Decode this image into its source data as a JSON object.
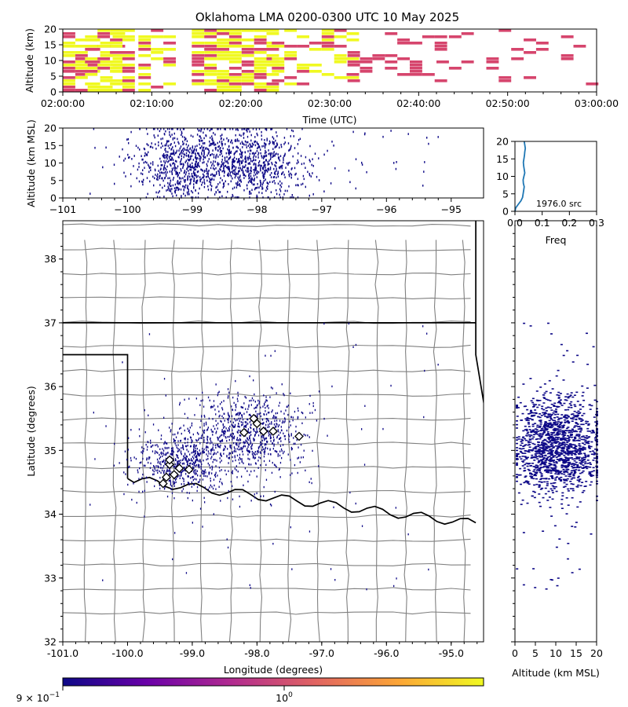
{
  "chart_data": [
    {
      "type": "heatmap",
      "panel": "time-altitude",
      "title": "Oklahoma LMA 0200-0300 UTC 10 May 2025",
      "xlabel": "Time (UTC)",
      "ylabel": "Altitude (km)",
      "x_ticks": [
        "02:00:00",
        "02:10:00",
        "02:20:00",
        "02:30:00",
        "02:40:00",
        "02:50:00",
        "03:00:00"
      ],
      "y_ticks": [
        "0",
        "5",
        "10",
        "15",
        "20"
      ],
      "xlim_minutes": [
        0,
        60
      ],
      "ylim": [
        0,
        20
      ],
      "clusters": [
        {
          "t": [
            0,
            6
          ],
          "alt": [
            0,
            20
          ],
          "fill": 0.55
        },
        {
          "t": [
            2.5,
            7.5
          ],
          "alt": [
            0,
            20
          ],
          "fill": 0.7
        },
        {
          "t": [
            8.5,
            12
          ],
          "alt": [
            0,
            20
          ],
          "fill": 0.45
        },
        {
          "t": [
            14.5,
            23.5
          ],
          "alt": [
            0,
            20
          ],
          "fill": 0.75
        },
        {
          "t": [
            23.5,
            32
          ],
          "alt": [
            2,
            20
          ],
          "fill": 0.3
        },
        {
          "t": [
            32,
            42
          ],
          "alt": [
            3,
            20
          ],
          "fill": 0.18
        },
        {
          "t": [
            42,
            60
          ],
          "alt": [
            2,
            20
          ],
          "fill": 0.09
        }
      ]
    },
    {
      "type": "scatter",
      "panel": "longitude-altitude",
      "xlabel": "",
      "ylabel": "Altitude (km MSL)",
      "x_ticks": [
        "−101",
        "−100",
        "−99",
        "−98",
        "−97",
        "−96",
        "−95"
      ],
      "y_ticks": [
        "0",
        "5",
        "10",
        "15",
        "20"
      ],
      "xlim": [
        -101,
        -94.5
      ],
      "ylim": [
        0,
        20
      ]
    },
    {
      "type": "line",
      "panel": "altitude-histogram",
      "xlabel": "Freq",
      "annotation": "1976.0 src",
      "x_ticks": [
        "0.0",
        "0.1",
        "0.2",
        "0.3"
      ],
      "y_ticks": [
        "0",
        "5",
        "10",
        "15",
        "20"
      ],
      "xlim": [
        0,
        0.3
      ],
      "ylim": [
        0,
        20
      ],
      "x": [
        0.0,
        0.003,
        0.012,
        0.022,
        0.028,
        0.03,
        0.032,
        0.034,
        0.031,
        0.03,
        0.033,
        0.036,
        0.034,
        0.032,
        0.031,
        0.033,
        0.035,
        0.036,
        0.038,
        0.036,
        0.034
      ],
      "y": [
        0.0,
        1,
        2,
        3,
        4,
        5,
        6,
        7,
        8,
        9,
        10,
        11,
        12,
        13,
        14,
        15,
        16,
        17,
        18,
        19,
        20
      ]
    },
    {
      "type": "scatter",
      "panel": "plan-view",
      "xlabel": "Longitude (degrees)",
      "ylabel": "Latitude (degrees)",
      "x_ticks": [
        "-101.0",
        "-100.0",
        "-99.0",
        "-98.0",
        "-97.0",
        "-96.0",
        "-95.0"
      ],
      "y_ticks": [
        "32",
        "33",
        "34",
        "35",
        "36",
        "37",
        "38"
      ],
      "xlim": [
        -101,
        -94.5
      ],
      "ylim": [
        32,
        38.6
      ],
      "clusters": [
        {
          "lon": -99.2,
          "lat": 34.8,
          "slon": 0.32,
          "slat": 0.22,
          "n": 500
        },
        {
          "lon": -98.1,
          "lat": 35.3,
          "slon": 0.42,
          "slat": 0.28,
          "n": 600
        },
        {
          "lon": -98.6,
          "lat": 35.0,
          "slon": 0.7,
          "slat": 0.45,
          "n": 300
        }
      ],
      "stations": [
        [
          -99.35,
          34.78
        ],
        [
          -99.28,
          34.62
        ],
        [
          -99.2,
          34.72
        ],
        [
          -99.05,
          34.7
        ],
        [
          -99.4,
          34.58
        ],
        [
          -99.45,
          34.48
        ],
        [
          -99.35,
          34.85
        ],
        [
          -98.05,
          35.5
        ],
        [
          -98.2,
          35.28
        ],
        [
          -97.9,
          35.3
        ],
        [
          -97.75,
          35.3
        ],
        [
          -97.35,
          35.22
        ],
        [
          -98.0,
          35.42
        ]
      ]
    },
    {
      "type": "scatter",
      "panel": "altitude-latitude",
      "xlabel": "Altitude (km MSL)",
      "x_ticks": [
        "0",
        "5",
        "10",
        "15",
        "20"
      ],
      "xlim": [
        0,
        20
      ],
      "ylim": [
        32,
        38.6
      ]
    },
    {
      "type": "colorbar",
      "panel": "colorbar",
      "tick_labels": [
        "9 × 10",
        "−1",
        "10",
        "0"
      ],
      "colors": [
        "#0d0887",
        "#6a00a8",
        "#b12a90",
        "#e16462",
        "#fca636",
        "#f0f921"
      ]
    }
  ]
}
